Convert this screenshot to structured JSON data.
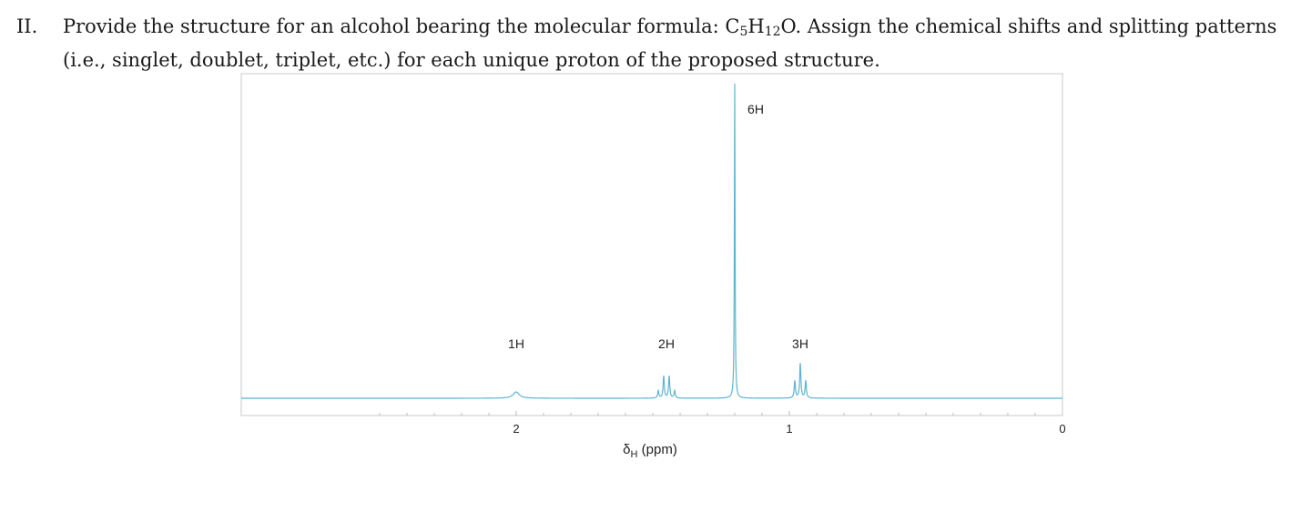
{
  "question": {
    "number": "II.",
    "text_before_formula": "Provide the structure for an alcohol bearing the molecular formula: ",
    "formula": [
      {
        "text": "C",
        "sub": "5"
      },
      {
        "text": "H",
        "sub": "12"
      },
      {
        "text": "O",
        "sub": ""
      }
    ],
    "text_after_formula": ". Assign the chemical shifts and splitting patterns (i.e., singlet, doublet, triplet, etc.) for each unique proton of the proposed structure."
  },
  "chart_data": {
    "type": "line",
    "xlabel": "δH (ppm)",
    "x_tick_labels": [
      {
        "value": 2,
        "label": "2"
      },
      {
        "value": 1,
        "label": "1"
      },
      {
        "value": 0,
        "label": "0"
      }
    ],
    "xlim": [
      2.0,
      0.0
    ],
    "x_reversed": true,
    "color": "#5fb3d2",
    "peaks": [
      {
        "shift": 2.0,
        "label": "1H",
        "multiplicity": "broad singlet",
        "lines": 1,
        "height": 0.02
      },
      {
        "shift": 1.45,
        "label": "2H",
        "multiplicity": "quartet",
        "lines": 4,
        "height": 0.07
      },
      {
        "shift": 1.2,
        "label": "6H",
        "multiplicity": "singlet",
        "lines": 1,
        "height": 1.0
      },
      {
        "shift": 0.96,
        "label": "3H",
        "multiplicity": "triplet",
        "lines": 3,
        "height": 0.11
      }
    ]
  }
}
